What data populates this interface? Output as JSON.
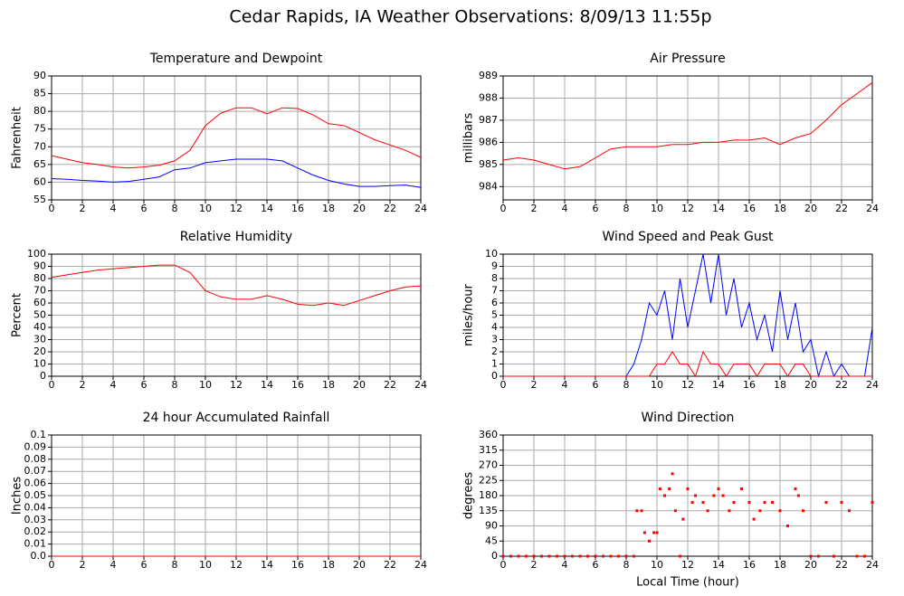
{
  "title": "Cedar Rapids, IA Weather Observations: 8/09/13 11:55p",
  "chart_data": [
    {
      "type": "line",
      "title": "Temperature and Dewpoint",
      "ylabel": "Fahrenheit",
      "x": [
        0,
        1,
        2,
        3,
        4,
        5,
        6,
        7,
        8,
        9,
        10,
        11,
        12,
        13,
        14,
        15,
        16,
        17,
        18,
        19,
        20,
        21,
        22,
        23,
        24
      ],
      "series": [
        {
          "color": "#ff0000",
          "values": [
            67.5,
            66.5,
            65.5,
            65,
            64.3,
            64,
            64.3,
            64.8,
            66,
            69,
            76,
            79.5,
            81,
            81,
            79.3,
            81,
            80.8,
            79,
            76.5,
            76,
            74,
            72,
            70.5,
            69,
            67
          ]
        },
        {
          "color": "#0000ff",
          "values": [
            61,
            60.8,
            60.5,
            60.3,
            60,
            60.2,
            60.8,
            61.5,
            63.5,
            64,
            65.5,
            66,
            66.5,
            66.5,
            66.5,
            66,
            64,
            62,
            60.5,
            59.5,
            58.8,
            58.8,
            59,
            59.2,
            58.5
          ]
        }
      ],
      "xlim": [
        0,
        24
      ],
      "xticks": [
        0,
        2,
        4,
        6,
        8,
        10,
        12,
        14,
        16,
        18,
        20,
        22,
        24
      ],
      "ylim": [
        55,
        90
      ],
      "yticks": [
        55,
        60,
        65,
        70,
        75,
        80,
        85,
        90
      ],
      "grid": true
    },
    {
      "type": "line",
      "title": "Air Pressure",
      "ylabel": "millibars",
      "x": [
        0,
        1,
        2,
        3,
        4,
        5,
        6,
        7,
        8,
        9,
        10,
        11,
        12,
        13,
        14,
        15,
        16,
        17,
        18,
        19,
        20,
        21,
        22,
        23,
        24
      ],
      "series": [
        {
          "color": "#ff0000",
          "values": [
            985.2,
            985.3,
            985.2,
            985,
            984.8,
            984.9,
            985.3,
            985.7,
            985.8,
            985.8,
            985.8,
            985.9,
            985.9,
            986,
            986,
            986.1,
            986.1,
            986.2,
            985.9,
            986.2,
            986.4,
            987,
            987.7,
            988.2,
            988.7
          ]
        }
      ],
      "xlim": [
        0,
        24
      ],
      "xticks": [
        0,
        2,
        4,
        6,
        8,
        10,
        12,
        14,
        16,
        18,
        20,
        22,
        24
      ],
      "ylim": [
        983.4,
        989
      ],
      "yticks": [
        984,
        985,
        986,
        987,
        988,
        989
      ],
      "grid": true
    },
    {
      "type": "line",
      "title": "Relative Humidity",
      "ylabel": "Percent",
      "x": [
        0,
        1,
        2,
        3,
        4,
        5,
        6,
        7,
        8,
        9,
        10,
        11,
        12,
        13,
        14,
        15,
        16,
        17,
        18,
        19,
        20,
        21,
        22,
        23,
        24
      ],
      "series": [
        {
          "color": "#ff0000",
          "values": [
            81,
            83,
            85,
            87,
            88,
            89,
            90,
            91,
            91,
            85,
            70,
            65,
            63,
            63,
            66,
            63,
            59,
            58,
            60,
            58,
            62,
            66,
            70,
            73,
            74
          ]
        }
      ],
      "xlim": [
        0,
        24
      ],
      "xticks": [
        0,
        2,
        4,
        6,
        8,
        10,
        12,
        14,
        16,
        18,
        20,
        22,
        24
      ],
      "ylim": [
        0,
        100
      ],
      "yticks": [
        0,
        10,
        20,
        30,
        40,
        50,
        60,
        70,
        80,
        90,
        100
      ],
      "grid": true
    },
    {
      "type": "line",
      "title": "Wind Speed and Peak Gust",
      "ylabel": "miles/hour",
      "x": [
        0,
        0.5,
        1,
        1.5,
        2,
        2.5,
        3,
        3.5,
        4,
        4.5,
        5,
        5.5,
        6,
        6.5,
        7,
        7.5,
        8,
        8.5,
        9,
        9.5,
        10,
        10.5,
        11,
        11.5,
        12,
        12.5,
        13,
        13.5,
        14,
        14.5,
        15,
        15.5,
        16,
        16.5,
        17,
        17.5,
        18,
        18.5,
        19,
        19.5,
        20,
        20.5,
        21,
        21.5,
        22,
        22.5,
        23,
        23.5,
        24
      ],
      "series": [
        {
          "color": "#0000ff",
          "values": [
            0,
            0,
            0,
            0,
            0,
            0,
            0,
            0,
            0,
            0,
            0,
            0,
            0,
            0,
            0,
            0,
            0,
            1,
            3,
            6,
            5,
            7,
            3,
            8,
            4,
            7,
            10,
            6,
            10,
            5,
            8,
            4,
            6,
            3,
            5,
            2,
            7,
            3,
            6,
            2,
            3,
            0,
            2,
            0,
            1,
            0,
            0,
            0,
            4
          ]
        },
        {
          "color": "#ff0000",
          "values": [
            0,
            0,
            0,
            0,
            0,
            0,
            0,
            0,
            0,
            0,
            0,
            0,
            0,
            0,
            0,
            0,
            0,
            0,
            0,
            0,
            1,
            1,
            2,
            1,
            1,
            0,
            2,
            1,
            1,
            0,
            1,
            1,
            1,
            0,
            1,
            1,
            1,
            0,
            1,
            1,
            0,
            0,
            0,
            0,
            0,
            0,
            0,
            0,
            0
          ]
        }
      ],
      "xlim": [
        0,
        24
      ],
      "xticks": [
        0,
        2,
        4,
        6,
        8,
        10,
        12,
        14,
        16,
        18,
        20,
        22,
        24
      ],
      "ylim": [
        0,
        10
      ],
      "yticks": [
        0,
        1,
        2,
        3,
        4,
        5,
        6,
        7,
        8,
        9,
        10
      ],
      "grid": true
    },
    {
      "type": "line",
      "title": "24 hour Accumulated Rainfall",
      "ylabel": "Inches",
      "x": [
        0,
        1,
        2,
        3,
        4,
        5,
        6,
        7,
        8,
        9,
        10,
        11,
        12,
        13,
        14,
        15,
        16,
        17,
        18,
        19,
        20,
        21,
        22,
        23,
        24
      ],
      "series": [
        {
          "color": "#ff0000",
          "values": [
            0,
            0,
            0,
            0,
            0,
            0,
            0,
            0,
            0,
            0,
            0,
            0,
            0,
            0,
            0,
            0,
            0,
            0,
            0,
            0,
            0,
            0,
            0,
            0,
            0
          ]
        }
      ],
      "xlim": [
        0,
        24
      ],
      "xticks": [
        0,
        2,
        4,
        6,
        8,
        10,
        12,
        14,
        16,
        18,
        20,
        22,
        24
      ],
      "ylim": [
        0,
        0.1
      ],
      "yticks": [
        {
          "value": 0,
          "label": "0.0"
        },
        0.01,
        0.02,
        0.03,
        0.04,
        0.05,
        0.06,
        0.07,
        0.08,
        0.09,
        0.1
      ],
      "grid": true
    },
    {
      "type": "scatter",
      "title": "Wind Direction",
      "ylabel": "degrees",
      "xlabel": "Local Time (hour)",
      "x": [
        0,
        0.5,
        1,
        1.5,
        2,
        2.5,
        3,
        3.5,
        4,
        4.5,
        5,
        5.5,
        6,
        6.5,
        7,
        7.5,
        8,
        8.5,
        8.7,
        9,
        9.2,
        9.5,
        9.8,
        10,
        10.2,
        10.5,
        10.8,
        11,
        11.2,
        11.5,
        11.7,
        12,
        12.3,
        12.5,
        13,
        13.3,
        13.7,
        14,
        14.3,
        14.7,
        15,
        15.5,
        16,
        16.3,
        16.7,
        17,
        17.5,
        18,
        18.5,
        19,
        19.2,
        19.5,
        20,
        20.5,
        21,
        21.5,
        22,
        22.5,
        23,
        23.5,
        24
      ],
      "series": [
        {
          "color": "#ff0000",
          "values": [
            0,
            0,
            0,
            0,
            0,
            0,
            0,
            0,
            0,
            0,
            0,
            0,
            0,
            0,
            0,
            0,
            0,
            0,
            135,
            135,
            70,
            45,
            70,
            70,
            200,
            180,
            200,
            245,
            135,
            0,
            110,
            200,
            160,
            180,
            160,
            135,
            180,
            200,
            180,
            135,
            160,
            200,
            160,
            110,
            135,
            160,
            160,
            135,
            90,
            200,
            180,
            135,
            0,
            0,
            160,
            0,
            160,
            135,
            0,
            0,
            160
          ]
        }
      ],
      "xlim": [
        0,
        24
      ],
      "xticks": [
        0,
        2,
        4,
        6,
        8,
        10,
        12,
        14,
        16,
        18,
        20,
        22,
        24
      ],
      "ylim": [
        0,
        360
      ],
      "yticks": [
        0,
        45,
        90,
        135,
        180,
        225,
        270,
        315,
        360
      ],
      "grid": true
    }
  ]
}
